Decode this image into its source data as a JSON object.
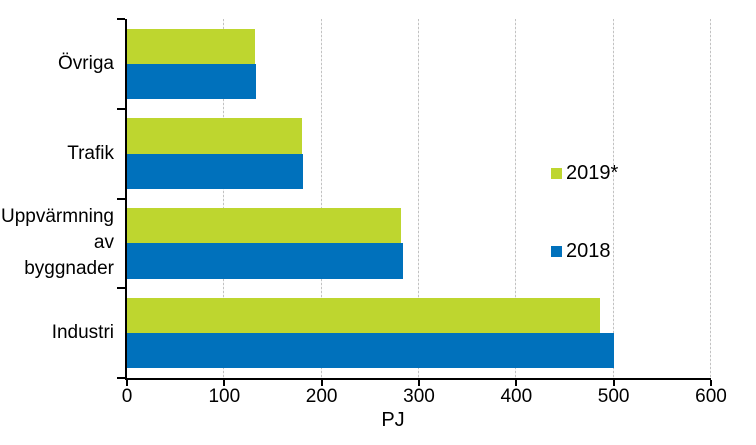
{
  "figure": {
    "background": "#ffffff",
    "text_color": "#000000"
  },
  "chart_data": {
    "type": "bar",
    "orientation": "horizontal",
    "title": "",
    "xlabel": "PJ",
    "ylabel": "",
    "xlim": [
      0,
      600
    ],
    "xticks": [
      0,
      100,
      200,
      300,
      400,
      500,
      600
    ],
    "grid": true,
    "gridline_color": "#c2c2c2",
    "axis_color": "#000000",
    "categories": [
      "Övriga",
      "Trafik",
      "Uppvärmning\nav byggnader",
      "Industri"
    ],
    "series": [
      {
        "name": "2019*",
        "color": "#bed62f",
        "values": [
          131,
          180,
          282,
          486
        ]
      },
      {
        "name": "2018",
        "color": "#0071bc",
        "values": [
          133,
          181,
          284,
          500
        ]
      }
    ],
    "legend": {
      "position": "middle-right",
      "entries": [
        "2019*",
        "2018"
      ]
    }
  }
}
